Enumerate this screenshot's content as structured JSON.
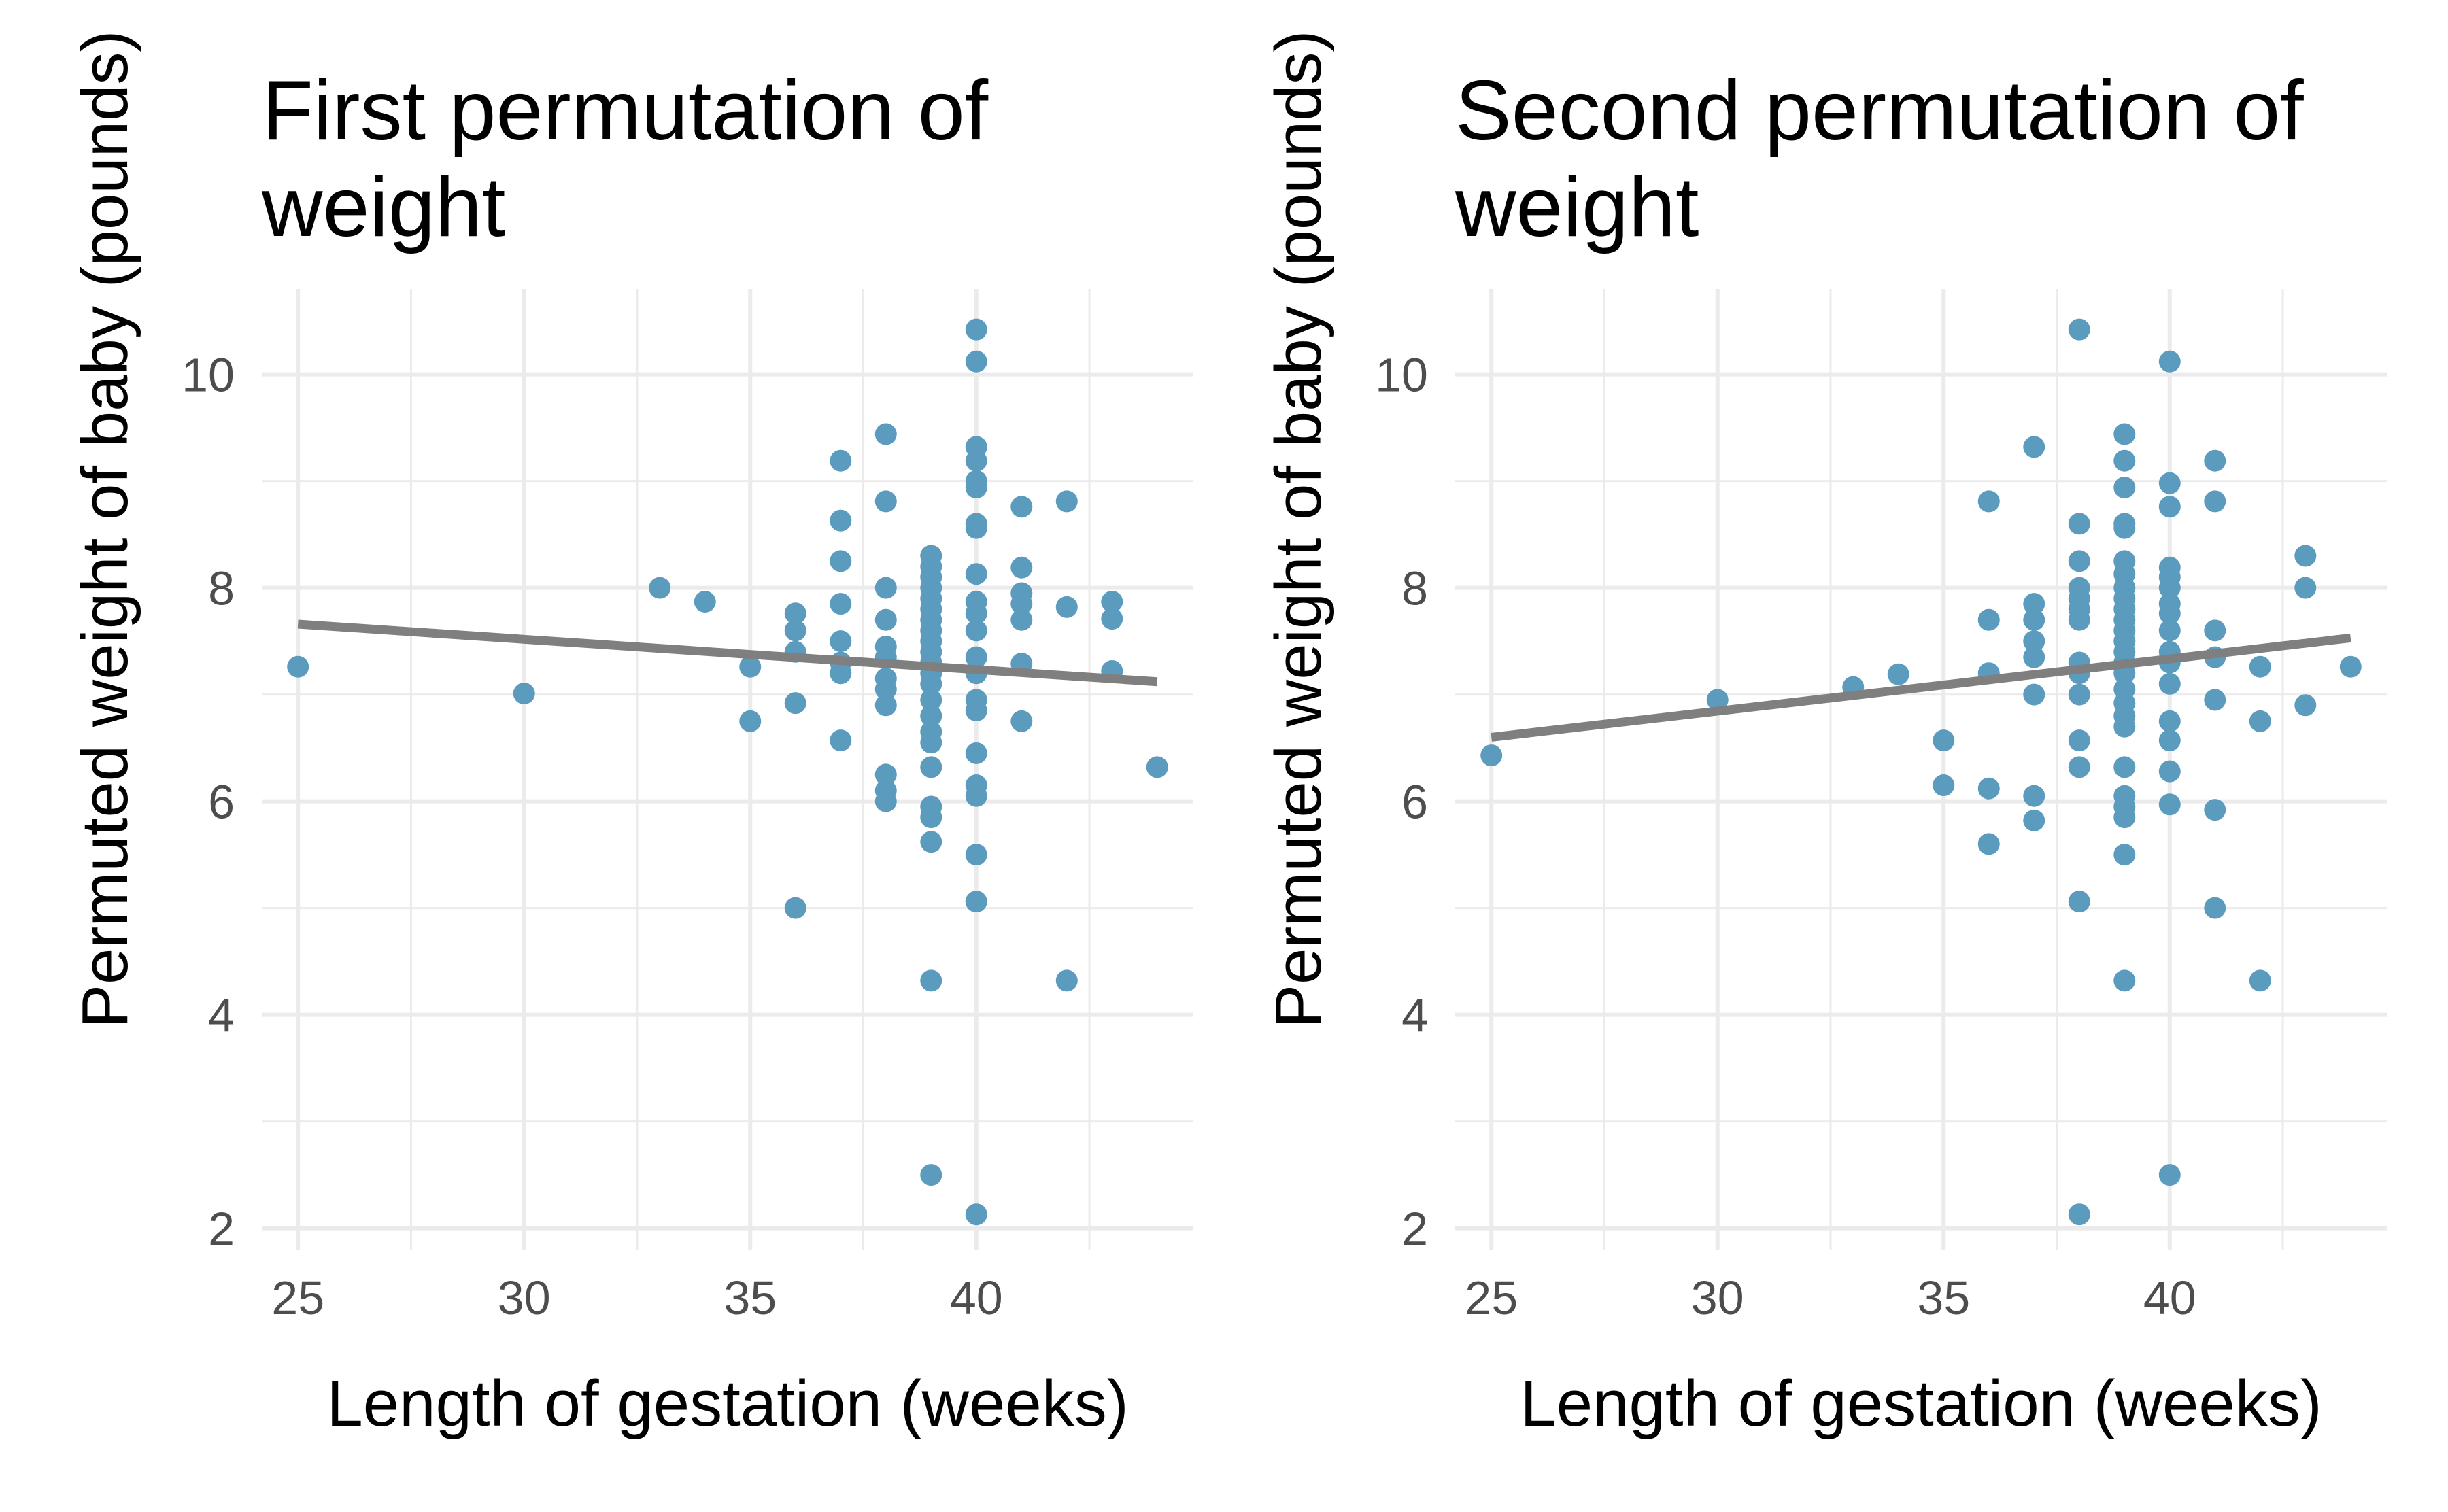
{
  "chart_data": [
    {
      "type": "scatter",
      "title": "First permutation of weight",
      "xlabel": "Length of gestation (weeks)",
      "ylabel": "Permuted weight of baby (pounds)",
      "xlim": [
        24.2,
        44.8
      ],
      "ylim": [
        1.8,
        10.8
      ],
      "xticks": [
        25,
        30,
        35,
        40
      ],
      "yticks": [
        2,
        4,
        6,
        8,
        10
      ],
      "grid": true,
      "point_color": "#5b9bbd",
      "line_color": "#7f7f7f",
      "fit_line": {
        "x": [
          25,
          44
        ],
        "y": [
          7.66,
          7.12
        ]
      },
      "points": [
        [
          25,
          7.26
        ],
        [
          30,
          7.01
        ],
        [
          33,
          8.0
        ],
        [
          34,
          7.87
        ],
        [
          35,
          7.26
        ],
        [
          35,
          6.75
        ],
        [
          36,
          7.76
        ],
        [
          36,
          7.6
        ],
        [
          36,
          7.4
        ],
        [
          36,
          6.92
        ],
        [
          36,
          5.0
        ],
        [
          37,
          9.19
        ],
        [
          37,
          8.63
        ],
        [
          37,
          8.25
        ],
        [
          37,
          7.85
        ],
        [
          37,
          7.5
        ],
        [
          37,
          7.3
        ],
        [
          37,
          7.2
        ],
        [
          37,
          6.57
        ],
        [
          38,
          9.44
        ],
        [
          38,
          8.81
        ],
        [
          38,
          8.0
        ],
        [
          38,
          7.7
        ],
        [
          38,
          7.45
        ],
        [
          38,
          7.35
        ],
        [
          38,
          7.15
        ],
        [
          38,
          7.05
        ],
        [
          38,
          6.9
        ],
        [
          38,
          6.25
        ],
        [
          38,
          6.1
        ],
        [
          38,
          6.0
        ],
        [
          39,
          8.3
        ],
        [
          39,
          8.2
        ],
        [
          39,
          8.1
        ],
        [
          39,
          8.0
        ],
        [
          39,
          7.9
        ],
        [
          39,
          7.8
        ],
        [
          39,
          7.7
        ],
        [
          39,
          7.6
        ],
        [
          39,
          7.5
        ],
        [
          39,
          7.4
        ],
        [
          39,
          7.3
        ],
        [
          39,
          7.2
        ],
        [
          39,
          7.1
        ],
        [
          39,
          6.95
        ],
        [
          39,
          6.8
        ],
        [
          39,
          6.65
        ],
        [
          39,
          6.55
        ],
        [
          39,
          6.32
        ],
        [
          39,
          5.95
        ],
        [
          39,
          5.85
        ],
        [
          39,
          5.62
        ],
        [
          39,
          4.32
        ],
        [
          39,
          2.5
        ],
        [
          40,
          10.42
        ],
        [
          40,
          10.12
        ],
        [
          40,
          9.32
        ],
        [
          40,
          9.19
        ],
        [
          40,
          9.0
        ],
        [
          40,
          8.94
        ],
        [
          40,
          8.6
        ],
        [
          40,
          8.56
        ],
        [
          40,
          8.13
        ],
        [
          40,
          7.87
        ],
        [
          40,
          7.76
        ],
        [
          40,
          7.6
        ],
        [
          40,
          7.35
        ],
        [
          40,
          7.2
        ],
        [
          40,
          6.95
        ],
        [
          40,
          6.85
        ],
        [
          40,
          6.45
        ],
        [
          40,
          6.15
        ],
        [
          40,
          6.05
        ],
        [
          40,
          5.5
        ],
        [
          40,
          5.06
        ],
        [
          40,
          2.13
        ],
        [
          41,
          8.76
        ],
        [
          41,
          8.19
        ],
        [
          41,
          7.95
        ],
        [
          41,
          7.85
        ],
        [
          41,
          7.7
        ],
        [
          41,
          7.29
        ],
        [
          41,
          6.75
        ],
        [
          42,
          8.81
        ],
        [
          42,
          7.82
        ],
        [
          42,
          4.32
        ],
        [
          43,
          7.87
        ],
        [
          43,
          7.71
        ],
        [
          43,
          7.22
        ],
        [
          44,
          6.32
        ]
      ]
    },
    {
      "type": "scatter",
      "title": "Second permutation of weight",
      "xlabel": "Length of gestation (weeks)",
      "ylabel": "Permuted weight of baby (pounds)",
      "xlim": [
        24.2,
        44.8
      ],
      "ylim": [
        1.8,
        10.8
      ],
      "xticks": [
        25,
        30,
        35,
        40
      ],
      "yticks": [
        2,
        4,
        6,
        8,
        10
      ],
      "grid": true,
      "point_color": "#5b9bbd",
      "line_color": "#7f7f7f",
      "fit_line": {
        "x": [
          25,
          44
        ],
        "y": [
          6.6,
          7.53
        ]
      },
      "points": [
        [
          25,
          6.43
        ],
        [
          30,
          6.95
        ],
        [
          33,
          7.07
        ],
        [
          34,
          7.19
        ],
        [
          35,
          6.57
        ],
        [
          35,
          6.15
        ],
        [
          36,
          8.81
        ],
        [
          36,
          7.7
        ],
        [
          36,
          7.2
        ],
        [
          36,
          6.12
        ],
        [
          36,
          5.6
        ],
        [
          37,
          9.32
        ],
        [
          37,
          7.85
        ],
        [
          37,
          7.7
        ],
        [
          37,
          7.5
        ],
        [
          37,
          7.35
        ],
        [
          37,
          7.0
        ],
        [
          37,
          6.05
        ],
        [
          37,
          5.82
        ],
        [
          38,
          10.42
        ],
        [
          38,
          8.6
        ],
        [
          38,
          8.25
        ],
        [
          38,
          8.0
        ],
        [
          38,
          7.9
        ],
        [
          38,
          7.8
        ],
        [
          38,
          7.7
        ],
        [
          38,
          7.3
        ],
        [
          38,
          7.2
        ],
        [
          38,
          7.0
        ],
        [
          38,
          6.57
        ],
        [
          38,
          6.32
        ],
        [
          38,
          5.06
        ],
        [
          38,
          2.13
        ],
        [
          39,
          9.44
        ],
        [
          39,
          9.19
        ],
        [
          39,
          8.94
        ],
        [
          39,
          8.6
        ],
        [
          39,
          8.56
        ],
        [
          39,
          8.25
        ],
        [
          39,
          8.13
        ],
        [
          39,
          8.0
        ],
        [
          39,
          7.9
        ],
        [
          39,
          7.8
        ],
        [
          39,
          7.7
        ],
        [
          39,
          7.6
        ],
        [
          39,
          7.5
        ],
        [
          39,
          7.4
        ],
        [
          39,
          7.3
        ],
        [
          39,
          7.2
        ],
        [
          39,
          7.05
        ],
        [
          39,
          6.92
        ],
        [
          39,
          6.8
        ],
        [
          39,
          6.7
        ],
        [
          39,
          6.32
        ],
        [
          39,
          6.05
        ],
        [
          39,
          5.95
        ],
        [
          39,
          5.85
        ],
        [
          39,
          5.5
        ],
        [
          39,
          4.32
        ],
        [
          40,
          10.12
        ],
        [
          40,
          8.98
        ],
        [
          40,
          8.76
        ],
        [
          40,
          8.19
        ],
        [
          40,
          8.1
        ],
        [
          40,
          8.0
        ],
        [
          40,
          7.85
        ],
        [
          40,
          7.76
        ],
        [
          40,
          7.6
        ],
        [
          40,
          7.4
        ],
        [
          40,
          7.3
        ],
        [
          40,
          7.1
        ],
        [
          40,
          6.75
        ],
        [
          40,
          6.57
        ],
        [
          40,
          6.28
        ],
        [
          40,
          5.97
        ],
        [
          40,
          2.5
        ],
        [
          41,
          9.19
        ],
        [
          41,
          8.81
        ],
        [
          41,
          7.6
        ],
        [
          41,
          7.35
        ],
        [
          41,
          6.95
        ],
        [
          41,
          5.92
        ],
        [
          41,
          5.0
        ],
        [
          42,
          7.26
        ],
        [
          42,
          6.75
        ],
        [
          42,
          4.32
        ],
        [
          43,
          8.3
        ],
        [
          43,
          8.0
        ],
        [
          43,
          6.9
        ],
        [
          44,
          7.26
        ]
      ]
    }
  ]
}
